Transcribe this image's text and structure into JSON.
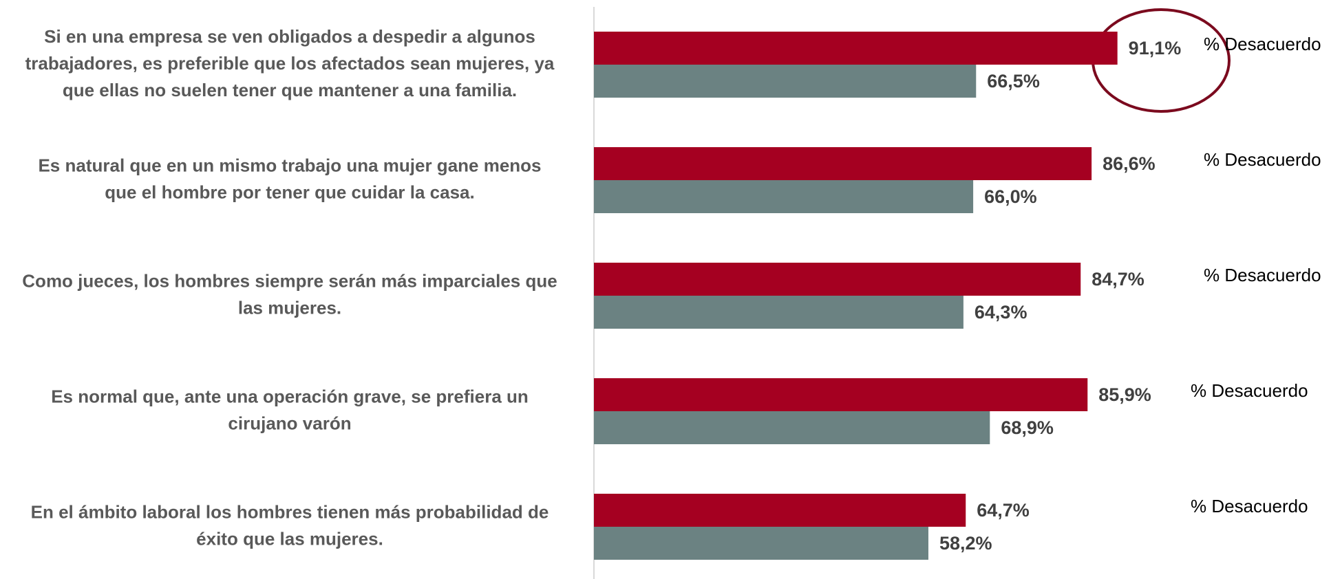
{
  "chart_data": {
    "type": "bar",
    "orientation": "horizontal",
    "categories": [
      [
        "Si en una empresa se ven obligados a despedir a algunos",
        "trabajadores, es preferible que los afectados sean mujeres, ya",
        "que ellas no suelen tener que mantener a una familia."
      ],
      [
        "Es natural que en un mismo trabajo una mujer gane menos",
        "que el hombre por tener que cuidar la casa."
      ],
      [
        "Como jueces, los hombres siempre serán más imparciales que",
        "las mujeres."
      ],
      [
        "Es normal que, ante una operación grave, se prefiera un",
        "cirujano varón"
      ],
      [
        "En el ámbito laboral los hombres tienen más probabilidad de",
        "éxito que las mujeres."
      ]
    ],
    "series": [
      {
        "color": "#a50021",
        "values": [
          91.1,
          86.6,
          84.7,
          85.9,
          64.7
        ],
        "value_labels": [
          "91,1%",
          "86,6%",
          "84,7%",
          "85,9%",
          "64,7%"
        ]
      },
      {
        "color": "#6b8282",
        "values": [
          66.5,
          66.0,
          64.3,
          68.9,
          58.2
        ],
        "value_labels": [
          "66,5%",
          "66,0%",
          "64,3%",
          "68,9%",
          "58,2%"
        ]
      }
    ],
    "annotations": [
      "% Desacuerdo",
      "% Desacuerdo",
      "% Desacuerdo",
      "% Desacuerdo",
      "% Desacuerdo"
    ],
    "xlim": [
      0,
      100
    ]
  }
}
